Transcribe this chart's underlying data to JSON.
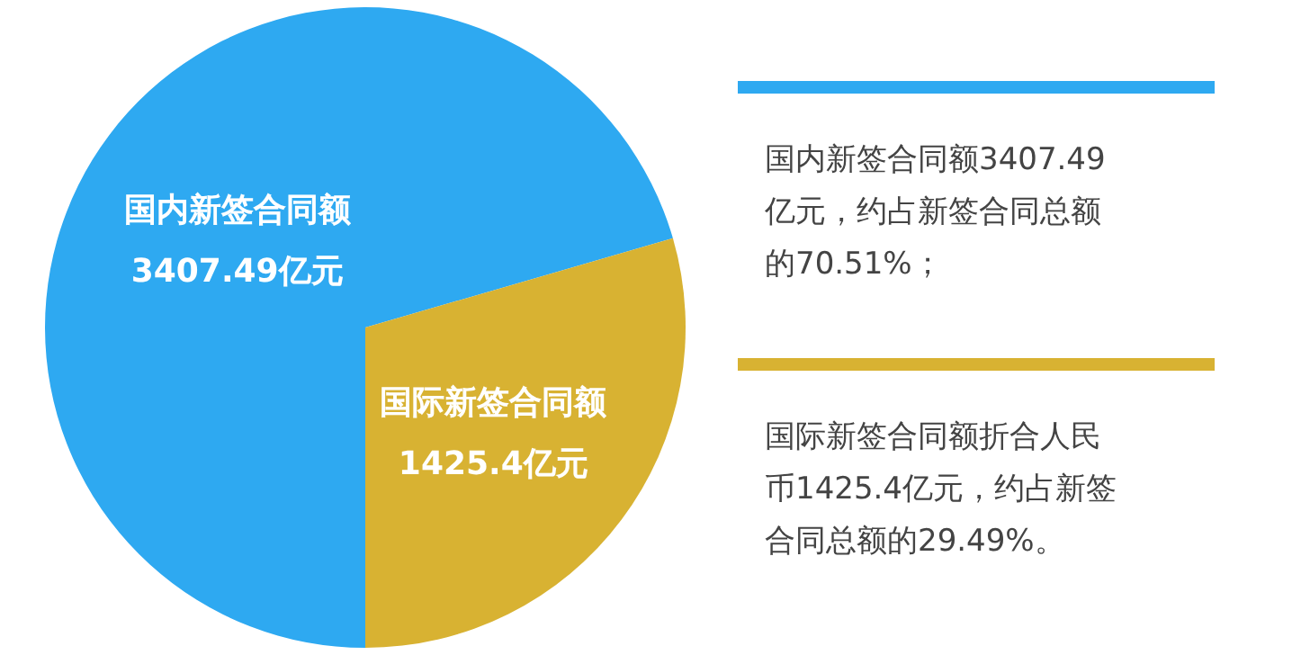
{
  "chart_data": {
    "type": "pie",
    "categories": [
      "国内新签合同额",
      "国际新签合同额"
    ],
    "values": [
      3407.49,
      1425.4
    ],
    "value_labels": [
      "3407.49亿元",
      "1425.4亿元"
    ],
    "colors": [
      "#2ea9f1",
      "#d8b232"
    ],
    "annotations": [
      "国内新签合同额3407.49亿元，约占新签合同总额的70.51%；",
      "国际新签合同额折合人民币1425.4亿元，约占新签合同总额的29.49%。"
    ]
  }
}
